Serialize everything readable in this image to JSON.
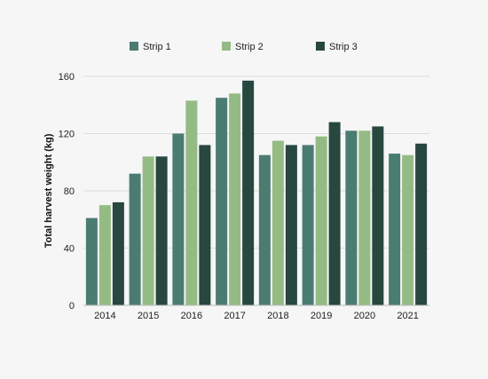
{
  "chart_data": {
    "type": "bar",
    "title": "",
    "xlabel": "",
    "ylabel": "Total harvest weight (kg)",
    "categories": [
      "2014",
      "2015",
      "2016",
      "2017",
      "2018",
      "2019",
      "2020",
      "2021"
    ],
    "series": [
      {
        "name": "Strip 1",
        "color": "#4a7c72",
        "values": [
          61,
          92,
          120,
          145,
          105,
          112,
          122,
          106
        ]
      },
      {
        "name": "Strip 2",
        "color": "#94bb84",
        "values": [
          70,
          104,
          143,
          148,
          115,
          118,
          122,
          105
        ]
      },
      {
        "name": "Strip 3",
        "color": "#27473f",
        "values": [
          72,
          104,
          112,
          157,
          112,
          128,
          125,
          113
        ]
      }
    ],
    "ylim": [
      0,
      160
    ],
    "yticks": [
      0,
      40,
      80,
      120,
      160
    ],
    "grid": true,
    "legend_position": "top"
  }
}
